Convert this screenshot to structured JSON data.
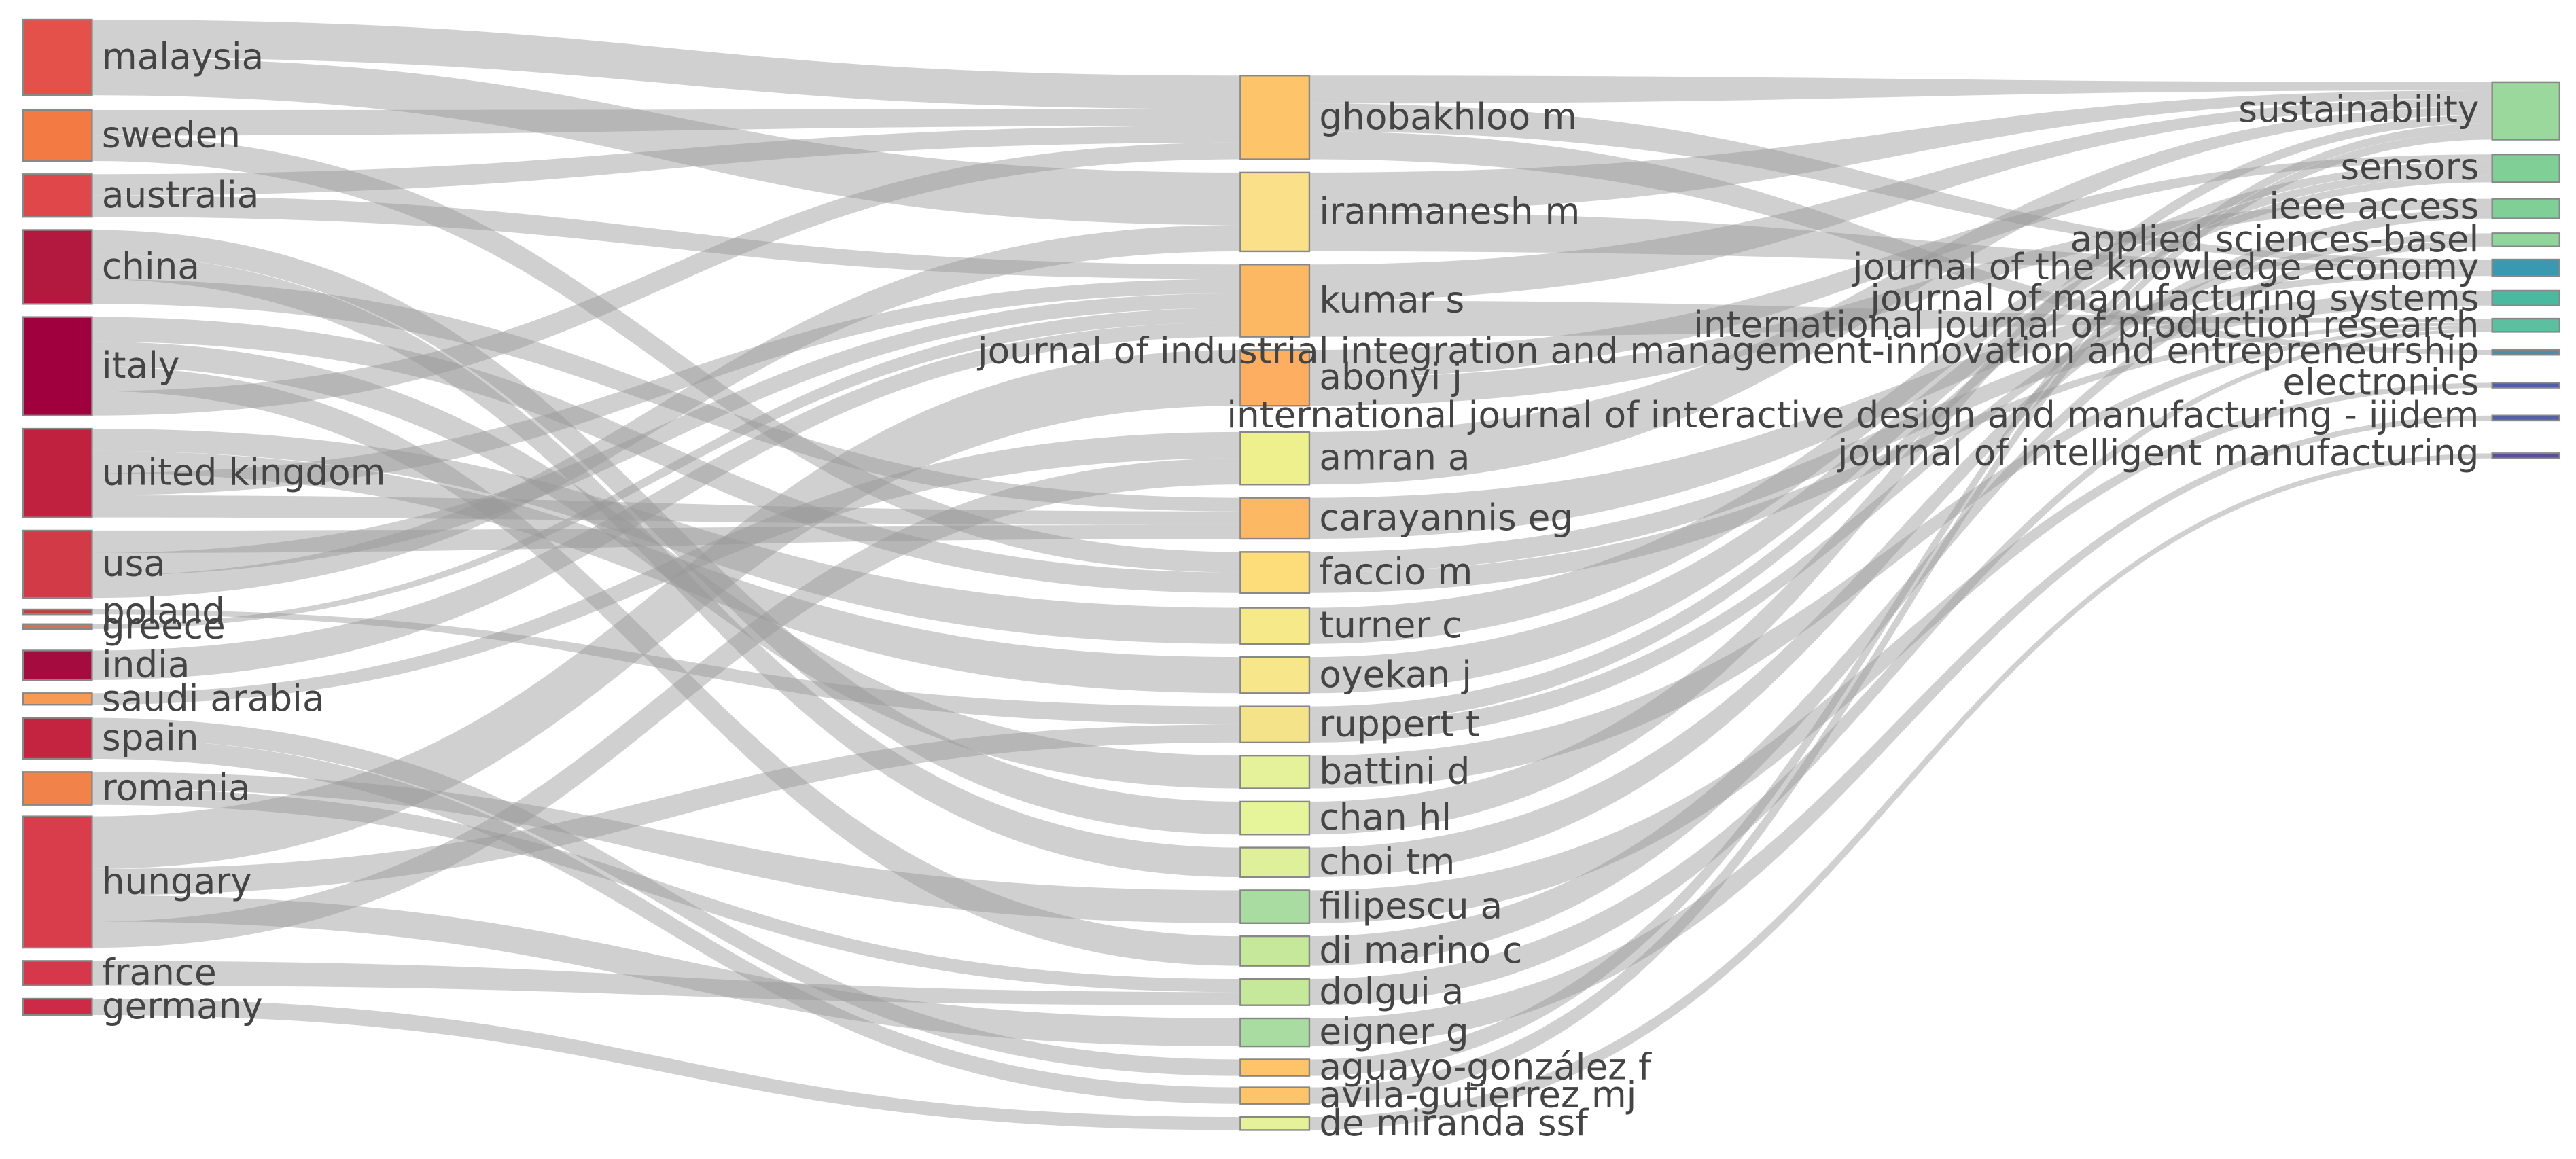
{
  "left": {
    "nodes": [
      {
        "label": "malaysia",
        "color": "#e4504a"
      },
      {
        "label": "sweden",
        "color": "#f47a44"
      },
      {
        "label": "australia",
        "color": "#e0474a"
      },
      {
        "label": "china",
        "color": "#b3183f"
      },
      {
        "label": "italy",
        "color": "#a0003e"
      },
      {
        "label": "united kingdom",
        "color": "#c0213f"
      },
      {
        "label": "usa",
        "color": "#d33a48"
      },
      {
        "label": "poland",
        "color": "#b8433f"
      },
      {
        "label": "greece",
        "color": "#d9704e"
      },
      {
        "label": "india",
        "color": "#a50b3f"
      },
      {
        "label": "saudi arabia",
        "color": "#f79a53"
      },
      {
        "label": "spain",
        "color": "#c4243f"
      },
      {
        "label": "romania",
        "color": "#f1834a"
      },
      {
        "label": "hungary",
        "color": "#d93c4b"
      },
      {
        "label": "france",
        "color": "#d6374a"
      },
      {
        "label": "germany",
        "color": "#cc2a47"
      }
    ]
  },
  "middle": {
    "nodes": [
      {
        "label": "ghobakhloo m",
        "color": "#fdc46a"
      },
      {
        "label": "iranmanesh m",
        "color": "#fbe08a"
      },
      {
        "label": "kumar s",
        "color": "#fdb863"
      },
      {
        "label": "abonyi j",
        "color": "#fdae61"
      },
      {
        "label": "amran a",
        "color": "#eef08e"
      },
      {
        "label": "carayannis eg",
        "color": "#fdb863"
      },
      {
        "label": "faccio m",
        "color": "#fddc7a"
      },
      {
        "label": "turner c",
        "color": "#f5e98a"
      },
      {
        "label": "oyekan j",
        "color": "#f7e68a"
      },
      {
        "label": "ruppert t",
        "color": "#f5e38a"
      },
      {
        "label": "battini d",
        "color": "#e6f29a"
      },
      {
        "label": "chan hl",
        "color": "#e6f59a"
      },
      {
        "label": "choi tm",
        "color": "#def09a"
      },
      {
        "label": "filipescu a",
        "color": "#a8dca0"
      },
      {
        "label": "di marino c",
        "color": "#c6e89a"
      },
      {
        "label": "dolgui a",
        "color": "#c6e89a"
      },
      {
        "label": "eigner g",
        "color": "#a8dca0"
      },
      {
        "label": "aguayo-gonzález f",
        "color": "#fdc46a"
      },
      {
        "label": "avila-gutierrez mj",
        "color": "#fdc46a"
      },
      {
        "label": "de miranda ssf",
        "color": "#e6f29a"
      }
    ]
  },
  "right": {
    "nodes": [
      {
        "label": "sustainability",
        "color": "#9bd89b"
      },
      {
        "label": "sensors",
        "color": "#7fcf97"
      },
      {
        "label": "ieee access",
        "color": "#7fcf97"
      },
      {
        "label": "applied sciences-basel",
        "color": "#8fd69a"
      },
      {
        "label": "journal of the knowledge economy",
        "color": "#3a98b0"
      },
      {
        "label": "journal of manufacturing systems",
        "color": "#4bb8a0"
      },
      {
        "label": "international journal of production research",
        "color": "#5cc0a0"
      },
      {
        "label": "journal of industrial integration and management-innovation and entrepreneurship",
        "color": "#4a8fa8"
      },
      {
        "label": "electronics",
        "color": "#5060a0"
      },
      {
        "label": "international journal of interactive design and manufacturing - ijidem",
        "color": "#5560a0"
      },
      {
        "label": "journal of intelligent manufacturing",
        "color": "#5a4e9a"
      }
    ]
  }
}
